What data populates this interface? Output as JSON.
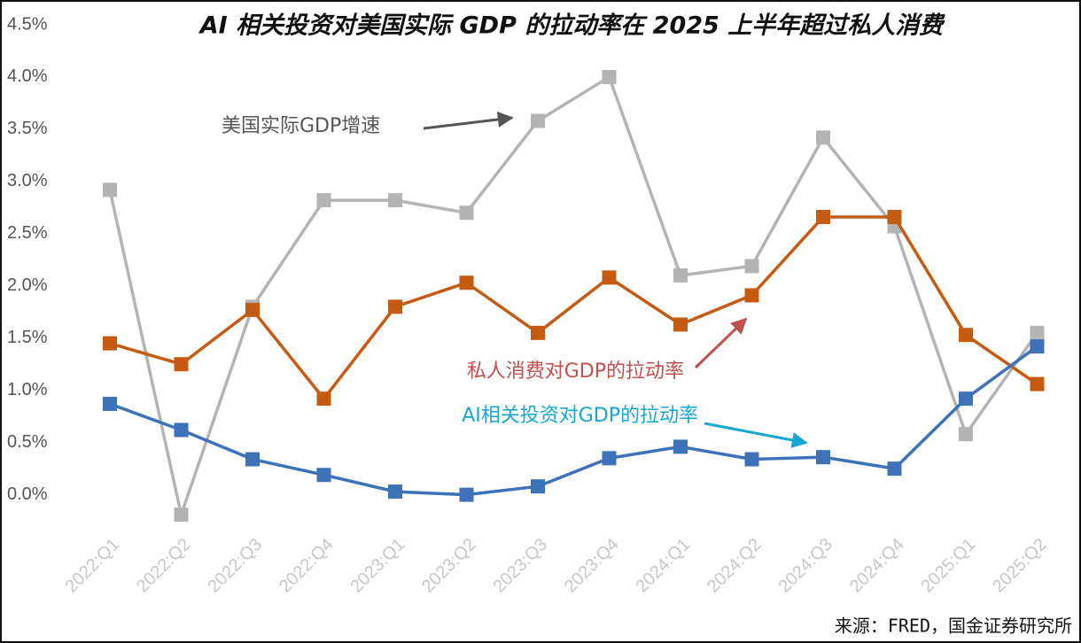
{
  "chart_data": {
    "type": "line",
    "title": "AI 相关投资对美国实际 GDP 的拉动率在 2025 上半年超过私人消费",
    "source": "来源：FRED，国金证券研究所",
    "categories": [
      "2022:Q1",
      "2022:Q2",
      "2022:Q3",
      "2022:Q4",
      "2023:Q1",
      "2023:Q2",
      "2023:Q3",
      "2023:Q4",
      "2024:Q1",
      "2024:Q2",
      "2024:Q3",
      "2024:Q4",
      "2025:Q1",
      "2025:Q2"
    ],
    "series": [
      {
        "name": "美国实际GDP增速",
        "color": "#b4b4b4",
        "label_color": "#555555",
        "values": [
          2.92,
          -0.19,
          1.8,
          2.82,
          2.82,
          2.7,
          3.58,
          4.0,
          2.1,
          2.19,
          3.42,
          2.57,
          0.58,
          1.55
        ]
      },
      {
        "name": "私人消费对GDP的拉动率",
        "color": "#c55a11",
        "label_color": "#c0504d",
        "values": [
          1.45,
          1.25,
          1.77,
          0.92,
          1.8,
          2.03,
          1.55,
          2.08,
          1.63,
          1.91,
          2.66,
          2.66,
          1.53,
          1.06
        ]
      },
      {
        "name": "AI相关投资对GDP的拉动率",
        "color": "#3d72b8",
        "label_color": "#16a8d0",
        "values": [
          0.87,
          0.62,
          0.34,
          0.19,
          0.03,
          0.0,
          0.08,
          0.35,
          0.46,
          0.34,
          0.36,
          0.25,
          0.92,
          1.42
        ]
      }
    ],
    "ylim": [
      -0.3,
      4.5
    ],
    "yticks": [
      {
        "value": 0,
        "label": "0.0%"
      },
      {
        "value": 0.5,
        "label": "0.5%"
      },
      {
        "value": 1,
        "label": "1.0%"
      },
      {
        "value": 1.5,
        "label": "1.5%"
      },
      {
        "value": 2,
        "label": "2.0%"
      },
      {
        "value": 2.5,
        "label": "2.5%"
      },
      {
        "value": 3,
        "label": "3.0%"
      },
      {
        "value": 3.5,
        "label": "3.5%"
      },
      {
        "value": 4,
        "label": "4.0%"
      },
      {
        "value": 4.5,
        "label": "4.5%"
      }
    ],
    "grid": false
  }
}
